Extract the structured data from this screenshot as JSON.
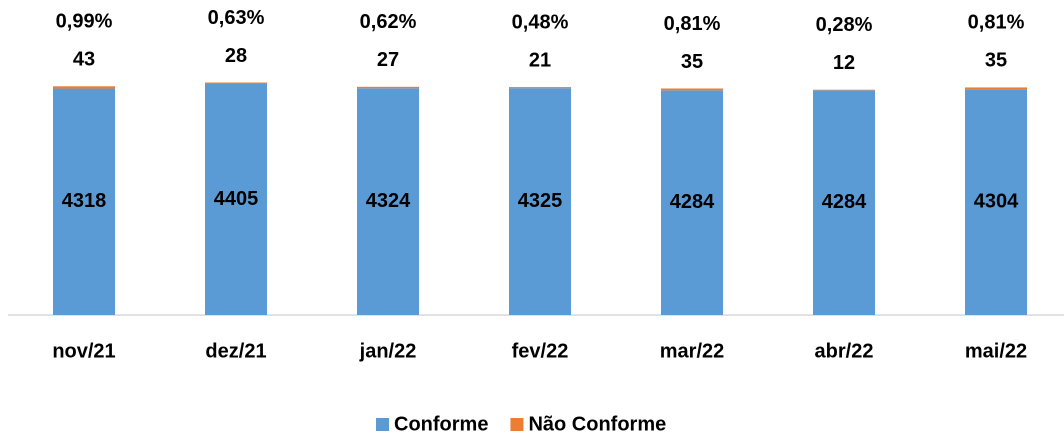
{
  "chart_data": {
    "type": "stacked_bar",
    "categories": [
      "nov/21",
      "dez/21",
      "jan/22",
      "fev/22",
      "mar/22",
      "abr/22",
      "mai/22"
    ],
    "series": [
      {
        "name": "Conforme",
        "color": "#5b9bd5",
        "values": [
          4318,
          4405,
          4324,
          4325,
          4284,
          4284,
          4304
        ]
      },
      {
        "name": "Não Conforme",
        "color": "#ed7d31",
        "values": [
          43,
          28,
          27,
          21,
          35,
          12,
          35
        ]
      }
    ],
    "annotations": [
      "0,99%",
      "0,63%",
      "0,62%",
      "0,48%",
      "0,81%",
      "0,28%",
      "0,81%"
    ],
    "ylim": [
      0,
      4500
    ],
    "legend": "bottom"
  }
}
